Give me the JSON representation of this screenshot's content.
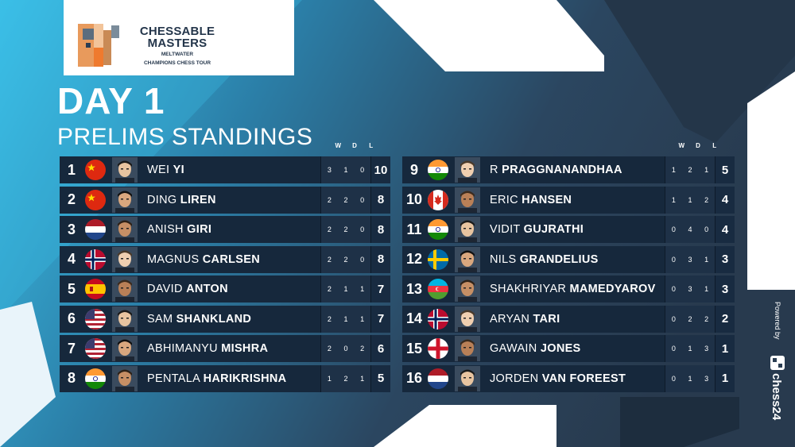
{
  "brand": {
    "title_line1": "CHESSABLE",
    "title_line2": "MASTERS",
    "sub_line1": "MELTWATER",
    "sub_line2": "CHAMPIONS CHESS TOUR"
  },
  "heading": {
    "day": "DAY 1",
    "subtitle": "PRELIMS STANDINGS"
  },
  "columns": {
    "w": "W",
    "d": "D",
    "l": "L"
  },
  "colors": {
    "accent_cyan": "#36b6e0",
    "panel": "#16283c",
    "background": "#2a3d52"
  },
  "left_table": [
    {
      "rank": "1",
      "country": "China",
      "first": "WEI ",
      "last": "YI",
      "w": "3",
      "d": "1",
      "l": "0",
      "pts": "10"
    },
    {
      "rank": "2",
      "country": "China",
      "first": "DING ",
      "last": "LIREN",
      "w": "2",
      "d": "2",
      "l": "0",
      "pts": "8"
    },
    {
      "rank": "3",
      "country": "Netherlands",
      "first": "ANISH ",
      "last": "GIRI",
      "w": "2",
      "d": "2",
      "l": "0",
      "pts": "8"
    },
    {
      "rank": "4",
      "country": "Norway",
      "first": "MAGNUS ",
      "last": "CARLSEN",
      "w": "2",
      "d": "2",
      "l": "0",
      "pts": "8"
    },
    {
      "rank": "5",
      "country": "Spain",
      "first": "DAVID ",
      "last": "ANTON",
      "w": "2",
      "d": "1",
      "l": "1",
      "pts": "7"
    },
    {
      "rank": "6",
      "country": "USA",
      "first": "SAM ",
      "last": "SHANKLAND",
      "w": "2",
      "d": "1",
      "l": "1",
      "pts": "7"
    },
    {
      "rank": "7",
      "country": "USA",
      "first": "ABHIMANYU ",
      "last": "MISHRA",
      "w": "2",
      "d": "0",
      "l": "2",
      "pts": "6"
    },
    {
      "rank": "8",
      "country": "India",
      "first": "PENTALA ",
      "last": "HARIKRISHNA",
      "w": "1",
      "d": "2",
      "l": "1",
      "pts": "5"
    }
  ],
  "right_table": [
    {
      "rank": "9",
      "country": "India",
      "first": "R ",
      "last": "PRAGGNANANDHAA",
      "w": "1",
      "d": "2",
      "l": "1",
      "pts": "5"
    },
    {
      "rank": "10",
      "country": "Canada",
      "first": "ERIC ",
      "last": "HANSEN",
      "w": "1",
      "d": "1",
      "l": "2",
      "pts": "4"
    },
    {
      "rank": "11",
      "country": "India",
      "first": "VIDIT ",
      "last": "GUJRATHI",
      "w": "0",
      "d": "4",
      "l": "0",
      "pts": "4"
    },
    {
      "rank": "12",
      "country": "Sweden",
      "first": "NILS ",
      "last": "GRANDELIUS",
      "w": "0",
      "d": "3",
      "l": "1",
      "pts": "3"
    },
    {
      "rank": "13",
      "country": "Azerbaijan",
      "first": "SHAKHRIYAR ",
      "last": "MAMEDYAROV",
      "w": "0",
      "d": "3",
      "l": "1",
      "pts": "3"
    },
    {
      "rank": "14",
      "country": "Norway",
      "first": "ARYAN ",
      "last": "TARI",
      "w": "0",
      "d": "2",
      "l": "2",
      "pts": "2"
    },
    {
      "rank": "15",
      "country": "England",
      "first": "GAWAIN ",
      "last": "JONES",
      "w": "0",
      "d": "1",
      "l": "3",
      "pts": "1"
    },
    {
      "rank": "16",
      "country": "Netherlands",
      "first": "JORDEN ",
      "last": "VAN FOREEST",
      "w": "0",
      "d": "1",
      "l": "3",
      "pts": "1"
    }
  ],
  "powered": {
    "label": "Powered by",
    "sponsor": "chess24",
    "icon": "chess24-logo-icon"
  }
}
